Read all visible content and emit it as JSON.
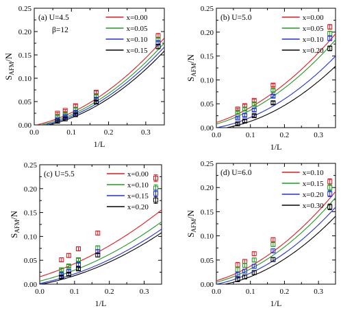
{
  "figure": {
    "ylabel_main": "S",
    "ylabel_sub": "AFM",
    "ylabel_tail": "/N",
    "xlabel": "1/L"
  },
  "chart_data": [
    {
      "type": "scatter",
      "panel_label": "(a) U=4.5",
      "panel_label2": "β=12",
      "xlim": [
        0,
        0.35
      ],
      "ylim": [
        0,
        0.25
      ],
      "xticks": [
        "0.0",
        "0.1",
        "0.2",
        "0.3"
      ],
      "yticks": [
        "0.00",
        "0.05",
        "0.10",
        "0.15",
        "0.20",
        "0.25"
      ],
      "series": [
        {
          "name": "x=0.00",
          "color": "#e8161c",
          "x": [
            0.0625,
            0.0833,
            0.1111,
            0.1667,
            0.3333
          ],
          "y": [
            0.025,
            0.031,
            0.041,
            0.07,
            0.191
          ],
          "err": [
            0.002,
            0.002,
            0.003,
            0.003,
            0.005
          ],
          "fit": {
            "x0": 0.006,
            "a": 0.18,
            "b": 1.05
          }
        },
        {
          "name": "x=0.05",
          "color": "#1f9a1f",
          "x": [
            0.0625,
            0.0833,
            0.1111,
            0.1667,
            0.3333
          ],
          "y": [
            0.018,
            0.023,
            0.033,
            0.061,
            0.183
          ],
          "err": [
            0.002,
            0.002,
            0.003,
            0.003,
            0.005
          ],
          "fit": {
            "x0": 0.018,
            "a": 0.18,
            "b": 1.05
          }
        },
        {
          "name": "x=0.10",
          "color": "#1f2ee8",
          "x": [
            0.0625,
            0.0833,
            0.1111,
            0.1667,
            0.3333
          ],
          "y": [
            0.012,
            0.018,
            0.027,
            0.055,
            0.176
          ],
          "err": [
            0.002,
            0.002,
            0.003,
            0.003,
            0.005
          ],
          "fit": {
            "x0": 0.028,
            "a": 0.18,
            "b": 1.05
          }
        },
        {
          "name": "x=0.15",
          "color": "#000000",
          "x": [
            0.0625,
            0.0833,
            0.1111,
            0.1667,
            0.3333
          ],
          "y": [
            0.008,
            0.013,
            0.022,
            0.049,
            0.168
          ],
          "err": [
            0.002,
            0.002,
            0.003,
            0.003,
            0.005
          ],
          "fit": {
            "x0": 0.038,
            "a": 0.18,
            "b": 1.05
          }
        }
      ]
    },
    {
      "type": "scatter",
      "panel_label": "(b) U=5.0",
      "panel_label2": "",
      "xlim": [
        0,
        0.35
      ],
      "ylim": [
        0,
        0.25
      ],
      "xticks": [
        "0.0",
        "0.1",
        "0.2",
        "0.3"
      ],
      "yticks": [
        "0.00",
        "0.05",
        "0.10",
        "0.15",
        "0.20",
        "0.25"
      ],
      "series": [
        {
          "name": "x=0.00",
          "color": "#e8161c",
          "x": [
            0.0625,
            0.0833,
            0.1111,
            0.1667,
            0.3333
          ],
          "y": [
            0.039,
            0.046,
            0.057,
            0.089,
            0.211
          ],
          "err": [
            0.002,
            0.003,
            0.003,
            0.003,
            0.005
          ],
          "fit": {
            "x0": -0.06,
            "a": 0.13,
            "b": 0.85
          }
        },
        {
          "name": "x=0.05",
          "color": "#1f9a1f",
          "x": [
            0.0625,
            0.0833,
            0.1111,
            0.1667,
            0.3333
          ],
          "y": [
            0.032,
            0.039,
            0.049,
            0.078,
            0.197
          ],
          "err": [
            0.002,
            0.003,
            0.003,
            0.003,
            0.005
          ],
          "fit": {
            "x0": -0.045,
            "a": 0.13,
            "b": 0.85
          }
        },
        {
          "name": "x=0.10",
          "color": "#1f2ee8",
          "x": [
            0.0625,
            0.0833,
            0.1111,
            0.1667,
            0.3333
          ],
          "y": [
            0.02,
            0.026,
            0.037,
            0.066,
            0.187
          ],
          "err": [
            0.002,
            0.003,
            0.003,
            0.003,
            0.005
          ],
          "fit": {
            "x0": 0.0,
            "a": 0.13,
            "b": 0.85
          }
        },
        {
          "name": "x=0.20",
          "color": "#000000",
          "x": [
            0.0625,
            0.0833,
            0.1111,
            0.1667,
            0.3333
          ],
          "y": [
            0.008,
            0.014,
            0.025,
            0.052,
            0.166
          ],
          "err": [
            0.002,
            0.003,
            0.003,
            0.003,
            0.005
          ],
          "fit": {
            "x0": 0.03,
            "a": 0.13,
            "b": 0.85
          }
        }
      ]
    },
    {
      "type": "scatter",
      "panel_label": "(c) U=5.5",
      "panel_label2": "",
      "xlim": [
        0,
        0.35
      ],
      "ylim": [
        0,
        0.25
      ],
      "xticks": [
        "0.0",
        "0.1",
        "0.2",
        "0.3"
      ],
      "yticks": [
        "0.00",
        "0.05",
        "0.10",
        "0.15",
        "0.20",
        "0.25"
      ],
      "series": [
        {
          "name": "x=0.00",
          "color": "#e8161c",
          "x": [
            0.0625,
            0.0833,
            0.1111,
            0.1667,
            0.3333
          ],
          "y": [
            0.051,
            0.06,
            0.074,
            0.107,
            0.222
          ],
          "err": [
            0.004,
            0.004,
            0.004,
            0.004,
            0.007
          ],
          "fit": {
            "x0": -0.085,
            "a": 0.14,
            "b": 0.5
          }
        },
        {
          "name": "x=0.10",
          "color": "#1f9a1f",
          "x": [
            0.0625,
            0.0833,
            0.1111,
            0.1667,
            0.3333
          ],
          "y": [
            0.03,
            0.038,
            0.051,
            0.076,
            0.201
          ],
          "err": [
            0.003,
            0.003,
            0.003,
            0.004,
            0.007
          ],
          "fit": {
            "x0": -0.04,
            "a": 0.14,
            "b": 0.5
          }
        },
        {
          "name": "x=0.15",
          "color": "#1f2ee8",
          "x": [
            0.0625,
            0.0833,
            0.1111,
            0.1667,
            0.3333
          ],
          "y": [
            0.02,
            0.027,
            0.041,
            0.068,
            0.19
          ],
          "err": [
            0.003,
            0.003,
            0.003,
            0.004,
            0.007
          ],
          "fit": {
            "x0": -0.01,
            "a": 0.14,
            "b": 0.5
          }
        },
        {
          "name": "x=0.20",
          "color": "#000000",
          "x": [
            0.0625,
            0.0833,
            0.1111,
            0.1667,
            0.3333
          ],
          "y": [
            0.015,
            0.021,
            0.032,
            0.061,
            0.176
          ],
          "err": [
            0.003,
            0.003,
            0.003,
            0.004,
            0.007
          ],
          "fit": {
            "x0": 0.005,
            "a": 0.14,
            "b": 0.5
          }
        }
      ]
    },
    {
      "type": "scatter",
      "panel_label": "(d) U=6.0",
      "panel_label2": "",
      "xlim": [
        0,
        0.35
      ],
      "ylim": [
        0,
        0.25
      ],
      "xticks": [
        "0.0",
        "0.1",
        "0.2",
        "0.3"
      ],
      "yticks": [
        "0.00",
        "0.05",
        "0.10",
        "0.15",
        "0.20",
        "0.25"
      ],
      "series": [
        {
          "name": "x=0.10",
          "color": "#e8161c",
          "x": [
            0.0625,
            0.0833,
            0.1111,
            0.1667,
            0.3333
          ],
          "y": [
            0.04,
            0.047,
            0.063,
            0.092,
            0.212
          ],
          "err": [
            0.005,
            0.004,
            0.004,
            0.004,
            0.006
          ],
          "fit": {
            "x0": -0.04,
            "a": 0.14,
            "b": 0.9
          }
        },
        {
          "name": "x=0.15",
          "color": "#1f9a1f",
          "x": [
            0.0625,
            0.0833,
            0.1111,
            0.1667,
            0.3333
          ],
          "y": [
            0.03,
            0.039,
            0.05,
            0.082,
            0.2
          ],
          "err": [
            0.005,
            0.004,
            0.004,
            0.004,
            0.006
          ],
          "fit": {
            "x0": -0.025,
            "a": 0.14,
            "b": 0.9
          }
        },
        {
          "name": "x=0.20",
          "color": "#1f2ee8",
          "x": [
            0.0625,
            0.0833,
            0.1111,
            0.1667,
            0.3333
          ],
          "y": [
            0.02,
            0.027,
            0.037,
            0.069,
            0.187
          ],
          "err": [
            0.005,
            0.004,
            0.004,
            0.004,
            0.006
          ],
          "fit": {
            "x0": 0.0,
            "a": 0.14,
            "b": 0.9
          }
        },
        {
          "name": "x=0.30",
          "color": "#000000",
          "x": [
            0.0625,
            0.0833,
            0.1111,
            0.1667,
            0.3333
          ],
          "y": [
            0.01,
            0.015,
            0.024,
            0.051,
            0.16
          ],
          "err": [
            0.005,
            0.004,
            0.004,
            0.004,
            0.006
          ],
          "fit": {
            "x0": 0.025,
            "a": 0.14,
            "b": 0.9
          }
        }
      ]
    }
  ]
}
